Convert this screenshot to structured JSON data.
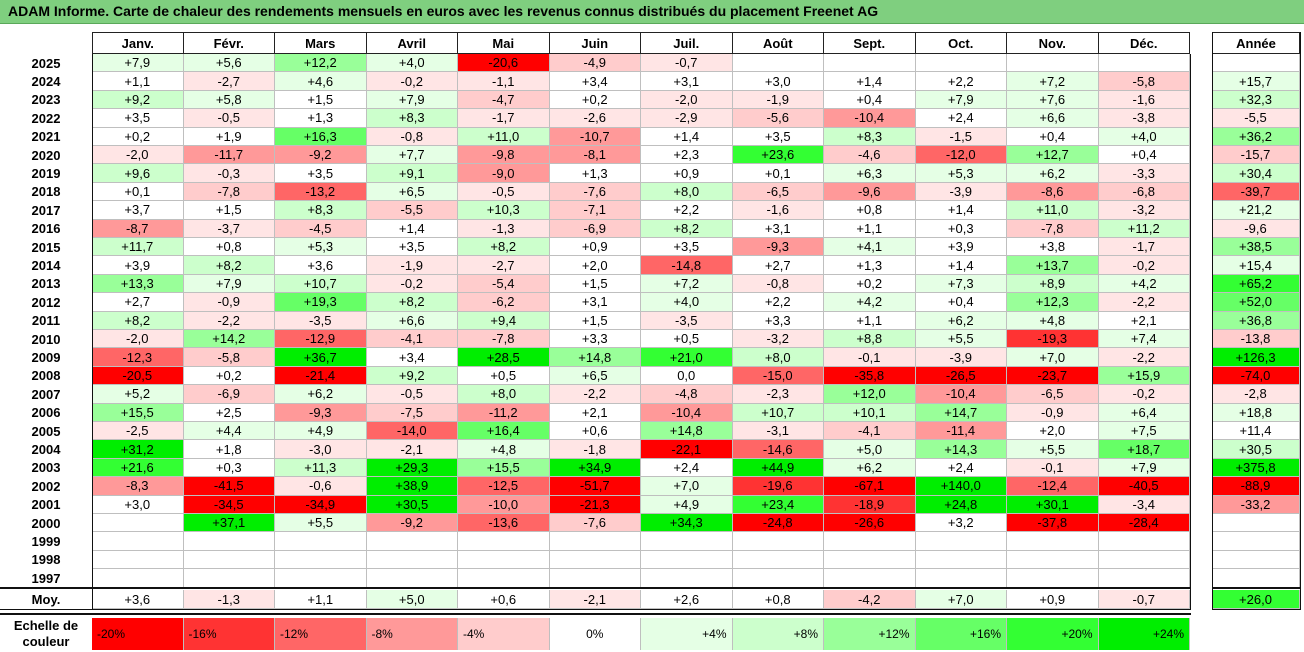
{
  "title": "ADAM Informe. Carte de chaleur des rendements mensuels en euros avec les revenus connus distribués du placement Freenet AG",
  "chart_data": {
    "type": "heatmap",
    "months": [
      "Janv.",
      "Févr.",
      "Mars",
      "Avril",
      "Mai",
      "Juin",
      "Juil.",
      "Août",
      "Sept.",
      "Oct.",
      "Nov.",
      "Déc."
    ],
    "year_header": "Année",
    "rows": [
      {
        "year": "2025",
        "values": [
          "+7,9",
          "+5,6",
          "+12,2",
          "+4,0",
          "-20,6",
          "-4,9",
          "-0,7",
          "",
          "",
          "",
          "",
          ""
        ],
        "annual": ""
      },
      {
        "year": "2024",
        "values": [
          "+1,1",
          "-2,7",
          "+4,6",
          "-0,2",
          "-1,1",
          "+3,4",
          "+3,1",
          "+3,0",
          "+1,4",
          "+2,2",
          "+7,2",
          "-5,8"
        ],
        "annual": "+15,7"
      },
      {
        "year": "2023",
        "values": [
          "+9,2",
          "+5,8",
          "+1,5",
          "+7,9",
          "-4,7",
          "+0,2",
          "-2,0",
          "-1,9",
          "+0,4",
          "+7,9",
          "+7,6",
          "-1,6"
        ],
        "annual": "+32,3"
      },
      {
        "year": "2022",
        "values": [
          "+3,5",
          "-0,5",
          "+1,3",
          "+8,3",
          "-1,7",
          "-2,6",
          "-2,9",
          "-5,6",
          "-10,4",
          "+2,4",
          "+6,6",
          "-3,8"
        ],
        "annual": "-5,5"
      },
      {
        "year": "2021",
        "values": [
          "+0,2",
          "+1,9",
          "+16,3",
          "-0,8",
          "+11,0",
          "-10,7",
          "+1,4",
          "+3,5",
          "+8,3",
          "-1,5",
          "+0,4",
          "+4,0"
        ],
        "annual": "+36,2"
      },
      {
        "year": "2020",
        "values": [
          "-2,0",
          "-11,7",
          "-9,2",
          "+7,7",
          "-9,8",
          "-8,1",
          "+2,3",
          "+23,6",
          "-4,6",
          "-12,0",
          "+12,7",
          "+0,4"
        ],
        "annual": "-15,7"
      },
      {
        "year": "2019",
        "values": [
          "+9,6",
          "-0,3",
          "+3,5",
          "+9,1",
          "-9,0",
          "+1,3",
          "+0,9",
          "+0,1",
          "+6,3",
          "+5,3",
          "+6,2",
          "-3,3"
        ],
        "annual": "+30,4"
      },
      {
        "year": "2018",
        "values": [
          "+0,1",
          "-7,8",
          "-13,2",
          "+6,5",
          "-0,5",
          "-7,6",
          "+8,0",
          "-6,5",
          "-9,6",
          "-3,9",
          "-8,6",
          "-6,8"
        ],
        "annual": "-39,7"
      },
      {
        "year": "2017",
        "values": [
          "+3,7",
          "+1,5",
          "+8,3",
          "-5,5",
          "+10,3",
          "-7,1",
          "+2,2",
          "-1,6",
          "+0,8",
          "+1,4",
          "+11,0",
          "-3,2"
        ],
        "annual": "+21,2"
      },
      {
        "year": "2016",
        "values": [
          "-8,7",
          "-3,7",
          "-4,5",
          "+1,4",
          "-1,3",
          "-6,9",
          "+8,2",
          "+3,1",
          "+1,1",
          "+0,3",
          "-7,8",
          "+11,2"
        ],
        "annual": "-9,6"
      },
      {
        "year": "2015",
        "values": [
          "+11,7",
          "+0,8",
          "+5,3",
          "+3,5",
          "+8,2",
          "+0,9",
          "+3,5",
          "-9,3",
          "+4,1",
          "+3,9",
          "+3,8",
          "-1,7"
        ],
        "annual": "+38,5"
      },
      {
        "year": "2014",
        "values": [
          "+3,9",
          "+8,2",
          "+3,6",
          "-1,9",
          "-2,7",
          "+2,0",
          "-14,8",
          "+2,7",
          "+1,3",
          "+1,4",
          "+13,7",
          "-0,2"
        ],
        "annual": "+15,4"
      },
      {
        "year": "2013",
        "values": [
          "+13,3",
          "+7,9",
          "+10,7",
          "-0,2",
          "-5,4",
          "+1,5",
          "+7,2",
          "-0,8",
          "+0,2",
          "+7,3",
          "+8,9",
          "+4,2"
        ],
        "annual": "+65,2"
      },
      {
        "year": "2012",
        "values": [
          "+2,7",
          "-0,9",
          "+19,3",
          "+8,2",
          "-6,2",
          "+3,1",
          "+4,0",
          "+2,2",
          "+4,2",
          "+0,4",
          "+12,3",
          "-2,2"
        ],
        "annual": "+52,0"
      },
      {
        "year": "2011",
        "values": [
          "+8,2",
          "-2,2",
          "-3,5",
          "+6,6",
          "+9,4",
          "+1,5",
          "-3,5",
          "+3,3",
          "+1,1",
          "+6,2",
          "+4,8",
          "+2,1"
        ],
        "annual": "+36,8"
      },
      {
        "year": "2010",
        "values": [
          "-2,0",
          "+14,2",
          "-12,9",
          "-4,1",
          "-7,8",
          "+3,3",
          "+0,5",
          "-3,2",
          "+8,8",
          "+5,5",
          "-19,3",
          "+7,4"
        ],
        "annual": "-13,8"
      },
      {
        "year": "2009",
        "values": [
          "-12,3",
          "-5,8",
          "+36,7",
          "+3,4",
          "+28,5",
          "+14,8",
          "+21,0",
          "+8,0",
          "-0,1",
          "-3,9",
          "+7,0",
          "-2,2"
        ],
        "annual": "+126,3"
      },
      {
        "year": "2008",
        "values": [
          "-20,5",
          "+0,2",
          "-21,4",
          "+9,2",
          "+0,5",
          "+6,5",
          "0,0",
          "-15,0",
          "-35,8",
          "-26,5",
          "-23,7",
          "+15,9"
        ],
        "annual": "-74,0"
      },
      {
        "year": "2007",
        "values": [
          "+5,2",
          "-6,9",
          "+6,2",
          "-0,5",
          "+8,0",
          "-2,2",
          "-4,8",
          "-2,3",
          "+12,0",
          "-10,4",
          "-6,5",
          "-0,2"
        ],
        "annual": "-2,8"
      },
      {
        "year": "2006",
        "values": [
          "+15,5",
          "+2,5",
          "-9,3",
          "-7,5",
          "-11,2",
          "+2,1",
          "-10,4",
          "+10,7",
          "+10,1",
          "+14,7",
          "-0,9",
          "+6,4"
        ],
        "annual": "+18,8"
      },
      {
        "year": "2005",
        "values": [
          "-2,5",
          "+4,4",
          "+4,9",
          "-14,0",
          "+16,4",
          "+0,6",
          "+14,8",
          "-3,1",
          "-4,1",
          "-11,4",
          "+2,0",
          "+7,5"
        ],
        "annual": "+11,4"
      },
      {
        "year": "2004",
        "values": [
          "+31,2",
          "+1,8",
          "-3,0",
          "-2,1",
          "+4,8",
          "-1,8",
          "-22,1",
          "-14,6",
          "+5,0",
          "+14,3",
          "+5,5",
          "+18,7"
        ],
        "annual": "+30,5"
      },
      {
        "year": "2003",
        "values": [
          "+21,6",
          "+0,3",
          "+11,3",
          "+29,3",
          "+15,5",
          "+34,9",
          "+2,4",
          "+44,9",
          "+6,2",
          "+2,4",
          "-0,1",
          "+7,9"
        ],
        "annual": "+375,8"
      },
      {
        "year": "2002",
        "values": [
          "-8,3",
          "-41,5",
          "-0,6",
          "+38,9",
          "-12,5",
          "-51,7",
          "+7,0",
          "-19,6",
          "-67,1",
          "+140,0",
          "-12,4",
          "-40,5"
        ],
        "annual": "-88,9"
      },
      {
        "year": "2001",
        "values": [
          "+3,0",
          "-34,5",
          "-34,9",
          "+30,5",
          "-10,0",
          "-21,3",
          "+4,9",
          "+23,4",
          "-18,9",
          "+24,8",
          "+30,1",
          "-3,4"
        ],
        "annual": "-33,2"
      },
      {
        "year": "2000",
        "values": [
          "",
          "+37,1",
          "+5,5",
          "-9,2",
          "-13,6",
          "-7,6",
          "+34,3",
          "-24,8",
          "-26,6",
          "+3,2",
          "-37,8",
          "-28,4"
        ],
        "annual": ""
      },
      {
        "year": "1999",
        "values": [
          "",
          "",
          "",
          "",
          "",
          "",
          "",
          "",
          "",
          "",
          "",
          ""
        ],
        "annual": ""
      },
      {
        "year": "1998",
        "values": [
          "",
          "",
          "",
          "",
          "",
          "",
          "",
          "",
          "",
          "",
          "",
          ""
        ],
        "annual": ""
      },
      {
        "year": "1997",
        "values": [
          "",
          "",
          "",
          "",
          "",
          "",
          "",
          "",
          "",
          "",
          "",
          ""
        ],
        "annual": ""
      }
    ],
    "average": {
      "label": "Moy.",
      "values": [
        "+3,6",
        "-1,3",
        "+1,1",
        "+5,0",
        "+0,6",
        "-2,1",
        "+2,6",
        "+0,8",
        "-4,2",
        "+7,0",
        "+0,9",
        "-0,7"
      ],
      "annual": "+26,0"
    },
    "scale": {
      "label_line1": "Echelle de",
      "label_line2": "couleur",
      "steps": [
        {
          "label": "-20%",
          "value": -20,
          "color": "#ff0000"
        },
        {
          "label": "-16%",
          "value": -16,
          "color": "#ff3333"
        },
        {
          "label": "-12%",
          "value": -12,
          "color": "#ff6666"
        },
        {
          "label": "-8%",
          "value": -8,
          "color": "#ff9999"
        },
        {
          "label": "-4%",
          "value": -4,
          "color": "#ffcccc"
        },
        {
          "label": "0%",
          "value": 0,
          "color": "#ffffff"
        },
        {
          "label": "+4%",
          "value": 4,
          "color": "#e5ffe5"
        },
        {
          "label": "+8%",
          "value": 8,
          "color": "#ccffcc"
        },
        {
          "label": "+12%",
          "value": 12,
          "color": "#99ff99"
        },
        {
          "label": "+16%",
          "value": 16,
          "color": "#66ff66"
        },
        {
          "label": "+20%",
          "value": 20,
          "color": "#33ff33"
        },
        {
          "label": "+24%",
          "value": 24,
          "color": "#00ee00"
        }
      ]
    }
  }
}
